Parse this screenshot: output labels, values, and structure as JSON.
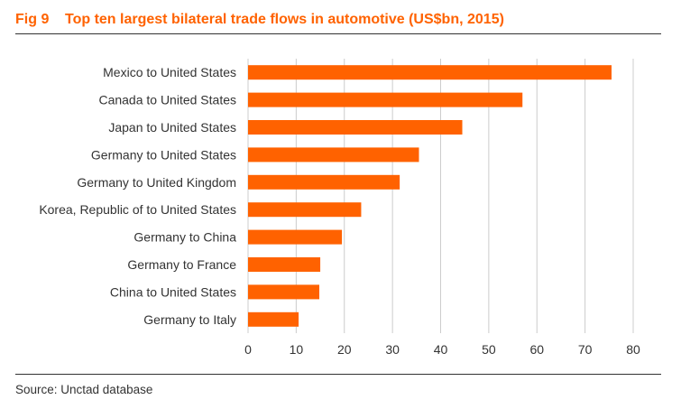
{
  "figure": {
    "number": "Fig 9",
    "title": "Top ten largest bilateral trade flows in automotive (US$bn, 2015)",
    "source": "Source: Unctad database"
  },
  "colors": {
    "bar": "#ff6200",
    "title": "#ff6200",
    "grid": "#cccccc",
    "text": "#333333"
  },
  "chart_data": {
    "type": "bar",
    "orientation": "horizontal",
    "categories": [
      "Mexico to United States",
      "Canada to United States",
      "Japan to United States",
      "Germany to United States",
      "Germany to United Kingdom",
      "Korea, Republic of to United States",
      "Germany to China",
      "Germany to France",
      "China to United States",
      "Germany to Italy"
    ],
    "values": [
      75.5,
      57,
      44.5,
      35.5,
      31.5,
      23.5,
      19.5,
      15,
      14.8,
      10.5
    ],
    "xlim": [
      0,
      80
    ],
    "xticks": [
      "0",
      "10",
      "20",
      "30",
      "40",
      "50",
      "60",
      "70",
      "80"
    ],
    "grid": "vertical",
    "legend": "none"
  }
}
